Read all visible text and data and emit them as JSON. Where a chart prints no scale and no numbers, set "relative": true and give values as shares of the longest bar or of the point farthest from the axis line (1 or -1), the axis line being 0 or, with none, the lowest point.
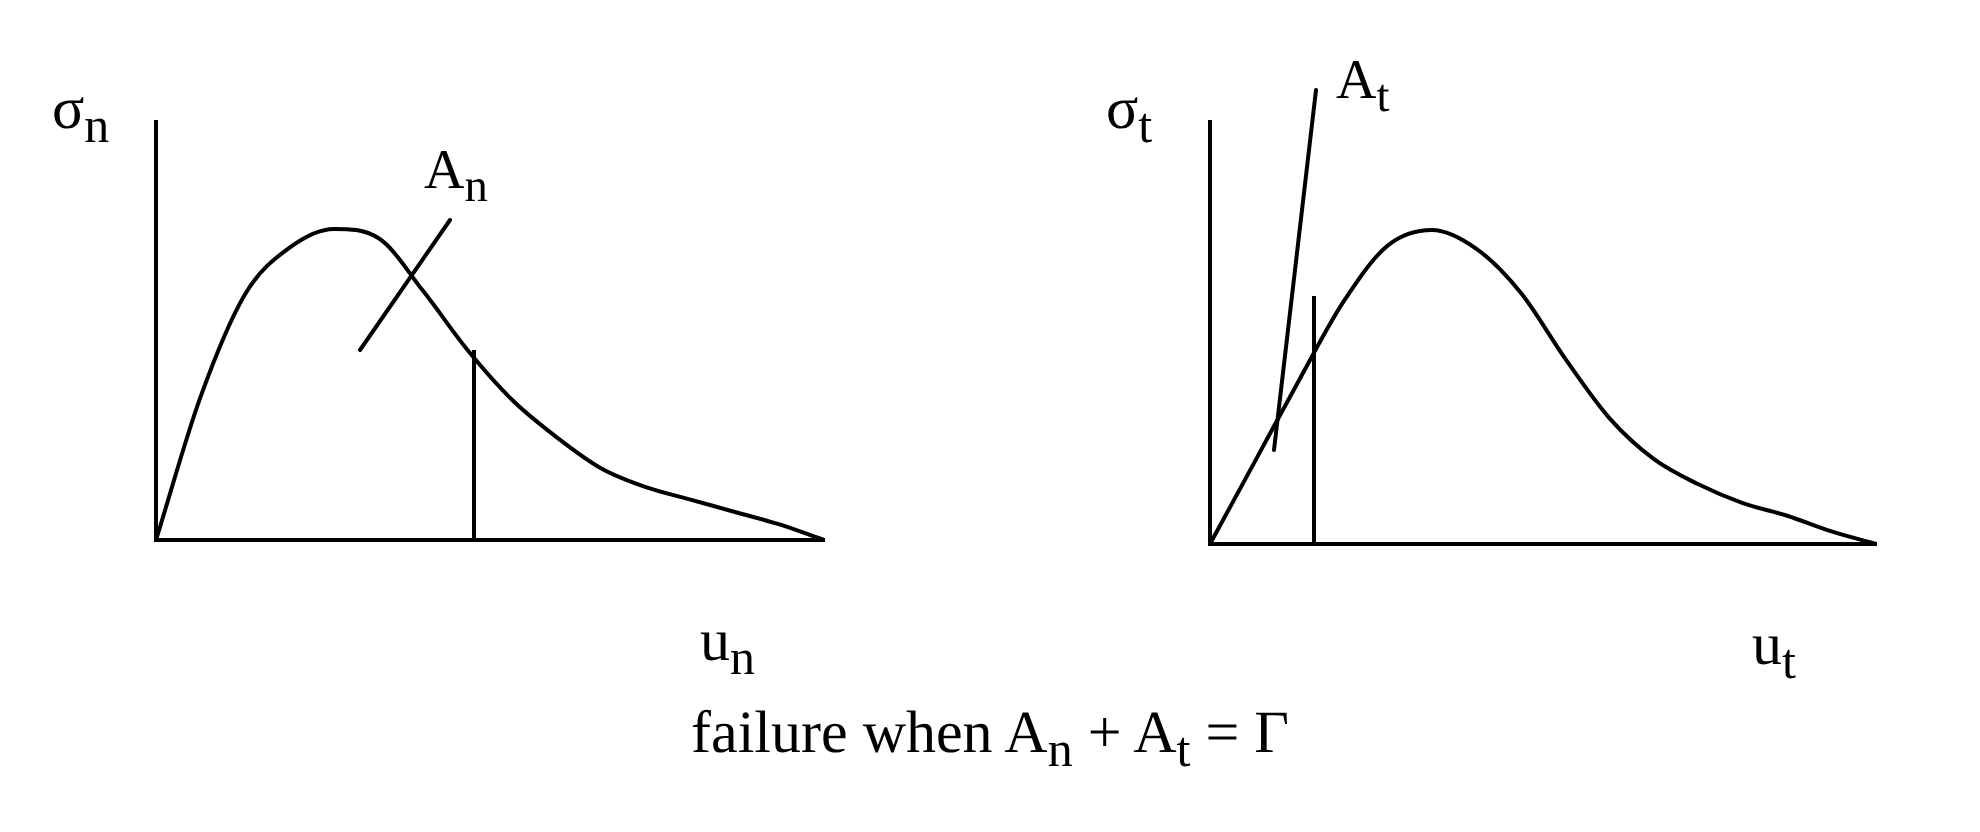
{
  "chart_data": [
    {
      "type": "line",
      "relative": true,
      "ylabel": "σ$_{n}$",
      "xlabel": "u$_{n}$",
      "tick_labels": false,
      "grid": false,
      "legend": false,
      "marker": "none",
      "line_style": "solid",
      "categories": [
        null,
        null,
        null,
        null,
        null,
        null,
        null,
        null,
        null,
        null,
        null,
        null,
        null,
        null,
        null,
        null
      ],
      "series": [
        {
          "color": "#000000",
          "values": [
            0,
            0.46,
            0.79,
            0.94,
            1,
            0.97,
            0.8,
            0.61,
            0.45,
            0.33,
            0.23,
            0.17,
            0.13,
            0.09,
            0.05,
            0
          ]
        }
      ],
      "annotations": [
        "A$_{n}$",
        "failure when A$_{n}$ + A$_{t}$ = Γ"
      ]
    },
    {
      "type": "line",
      "relative": true,
      "ylabel": "σ$_{t}$",
      "xlabel": "u$_{t}$",
      "tick_labels": false,
      "grid": false,
      "legend": false,
      "marker": "none",
      "line_style": "solid",
      "categories": [
        null,
        null,
        null,
        null,
        null,
        null,
        null,
        null,
        null,
        null,
        null,
        null,
        null,
        null,
        null,
        null
      ],
      "series": [
        {
          "color": "#000000",
          "values": [
            0,
            0.26,
            0.52,
            0.77,
            0.95,
            1,
            0.94,
            0.8,
            0.59,
            0.4,
            0.27,
            0.19,
            0.13,
            0.09,
            0.04,
            0
          ]
        }
      ],
      "annotations": [
        "A$_{t}$"
      ]
    }
  ]
}
